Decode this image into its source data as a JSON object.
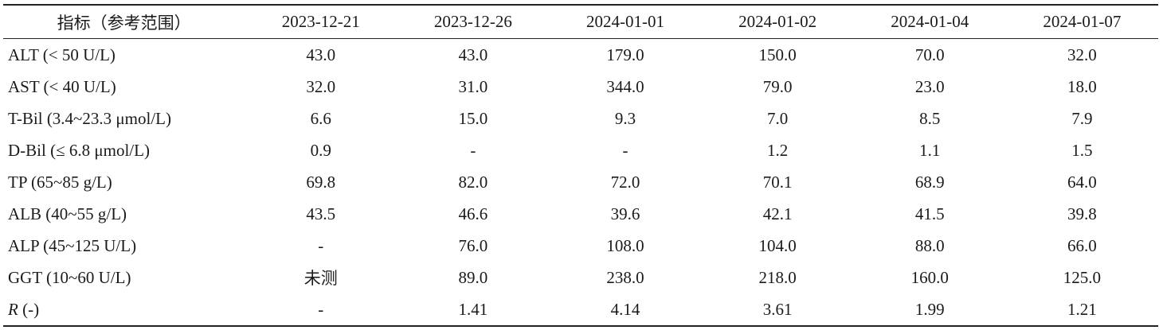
{
  "table": {
    "header": {
      "indicator": "指标（参考范围）",
      "dates": [
        "2023-12-21",
        "2023-12-26",
        "2024-01-01",
        "2024-01-02",
        "2024-01-04",
        "2024-01-07"
      ]
    },
    "rows": [
      {
        "label": "ALT (< 50 U/L)",
        "italic_prefix": "",
        "values": [
          "43.0",
          "43.0",
          "179.0",
          "150.0",
          "70.0",
          "32.0"
        ]
      },
      {
        "label": "AST (< 40 U/L)",
        "italic_prefix": "",
        "values": [
          "32.0",
          "31.0",
          "344.0",
          "79.0",
          "23.0",
          "18.0"
        ]
      },
      {
        "label": "T-Bil (3.4~23.3 μmol/L)",
        "italic_prefix": "",
        "values": [
          "6.6",
          "15.0",
          "9.3",
          "7.0",
          "8.5",
          "7.9"
        ]
      },
      {
        "label": "D-Bil (≤ 6.8 μmol/L)",
        "italic_prefix": "",
        "values": [
          "0.9",
          "-",
          "-",
          "1.2",
          "1.1",
          "1.5"
        ]
      },
      {
        "label": "TP (65~85 g/L)",
        "italic_prefix": "",
        "values": [
          "69.8",
          "82.0",
          "72.0",
          "70.1",
          "68.9",
          "64.0"
        ]
      },
      {
        "label": "ALB (40~55 g/L)",
        "italic_prefix": "",
        "values": [
          "43.5",
          "46.6",
          "39.6",
          "42.1",
          "41.5",
          "39.8"
        ]
      },
      {
        "label": "ALP (45~125 U/L)",
        "italic_prefix": "",
        "values": [
          "-",
          "76.0",
          "108.0",
          "104.0",
          "88.0",
          "66.0"
        ]
      },
      {
        "label": "GGT (10~60 U/L)",
        "italic_prefix": "",
        "values": [
          "未测",
          "89.0",
          "238.0",
          "218.0",
          "160.0",
          "125.0"
        ]
      },
      {
        "label": " (-)",
        "italic_prefix": "R",
        "values": [
          "-",
          "1.41",
          "4.14",
          "3.61",
          "1.99",
          "1.21"
        ]
      }
    ]
  }
}
